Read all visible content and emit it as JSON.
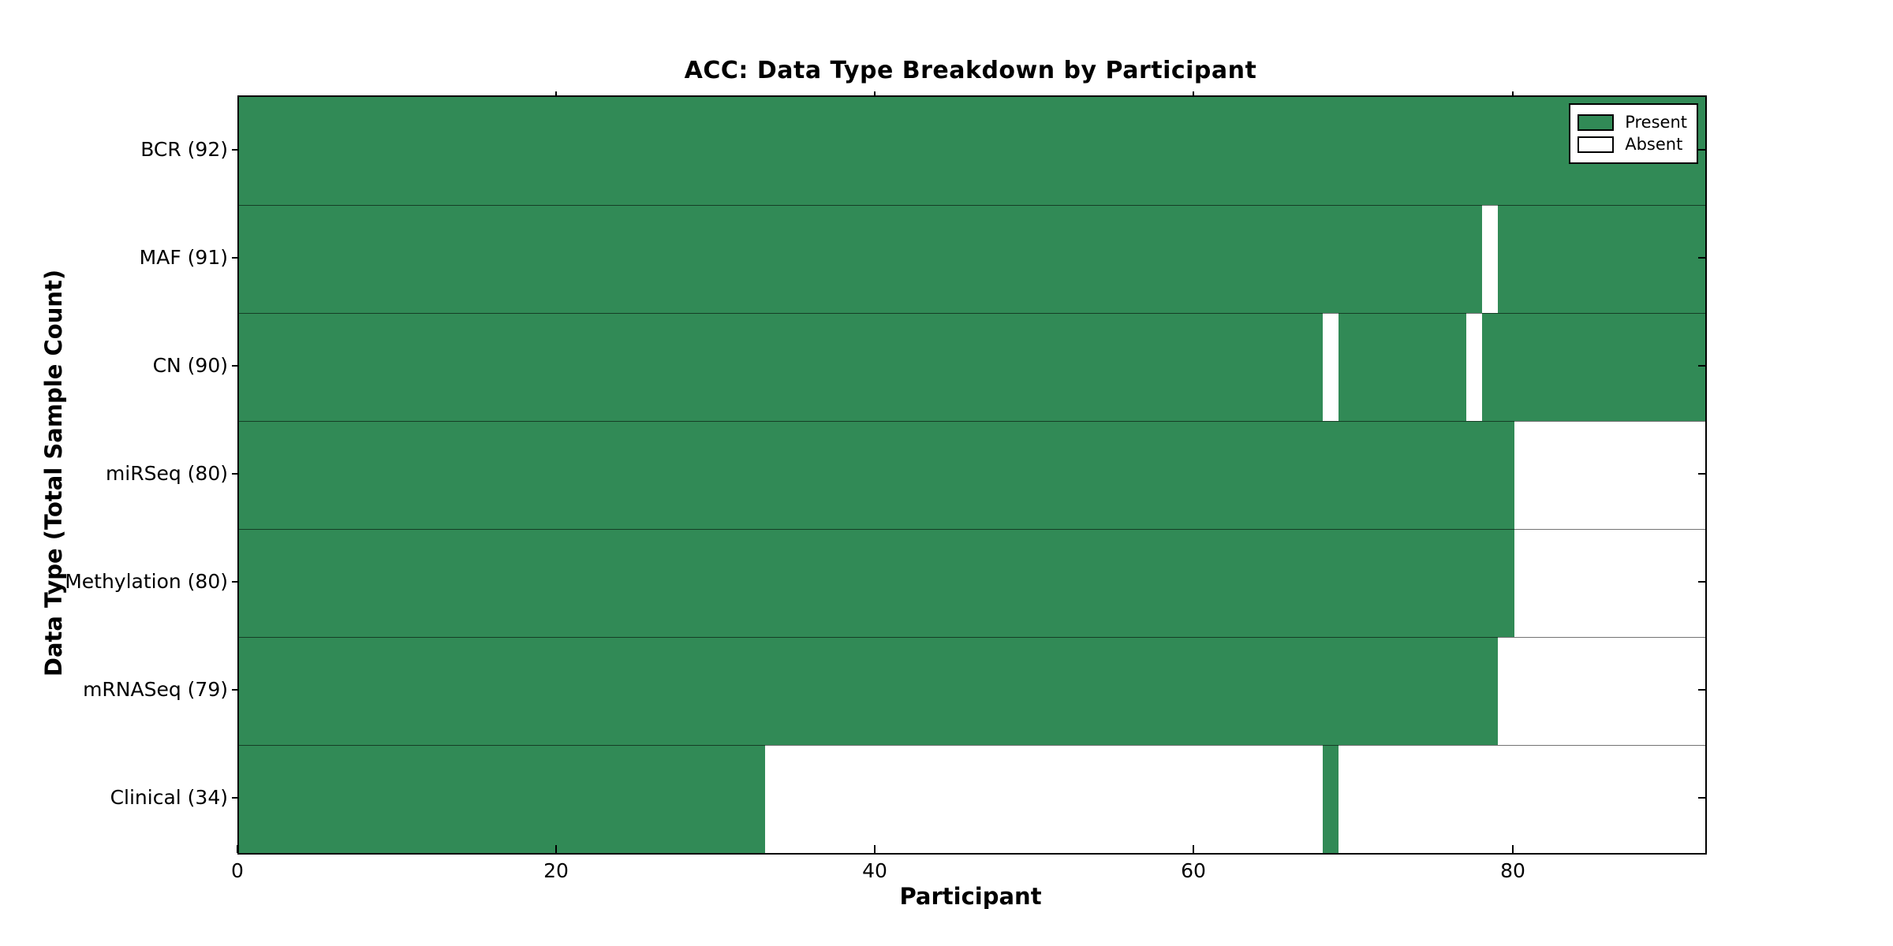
{
  "chart_data": {
    "type": "heatmap",
    "title": "ACC: Data Type Breakdown by Participant",
    "xlabel": "Participant",
    "ylabel": "Data Type (Total Sample Count)",
    "n_participants": 92,
    "xlim": [
      0,
      92
    ],
    "x_ticks": [
      0,
      20,
      40,
      60,
      80
    ],
    "grid": true,
    "legend_position": "upper right",
    "legend": [
      {
        "label": "Present",
        "key": "present"
      },
      {
        "label": "Absent",
        "key": "absent"
      }
    ],
    "colors": {
      "present": "#318a56",
      "absent": "#ffffff",
      "grid_line": "rgba(0,0,0,0.42)",
      "row_separator": "rgba(0,0,0,0.55)",
      "axis": "#000000"
    },
    "rows": [
      {
        "label": "BCR (92)",
        "name": "BCR",
        "total": 92,
        "absent": []
      },
      {
        "label": "MAF (91)",
        "name": "MAF",
        "total": 91,
        "absent": [
          78
        ]
      },
      {
        "label": "CN (90)",
        "name": "CN",
        "total": 90,
        "absent": [
          68,
          77
        ]
      },
      {
        "label": "miRSeq (80)",
        "name": "miRSeq",
        "total": 80,
        "absent": [
          80,
          81,
          82,
          83,
          84,
          85,
          86,
          87,
          88,
          89,
          90,
          91
        ]
      },
      {
        "label": "Methylation (80)",
        "name": "Methylation",
        "total": 80,
        "absent": [
          80,
          81,
          82,
          83,
          84,
          85,
          86,
          87,
          88,
          89,
          90,
          91
        ]
      },
      {
        "label": "mRNASeq (79)",
        "name": "mRNASeq",
        "total": 79,
        "absent": [
          79,
          80,
          81,
          82,
          83,
          84,
          85,
          86,
          87,
          88,
          89,
          90,
          91
        ]
      },
      {
        "label": "Clinical (34)",
        "name": "Clinical",
        "total": 34,
        "absent": [
          33,
          34,
          35,
          36,
          37,
          38,
          39,
          40,
          41,
          42,
          43,
          44,
          45,
          46,
          47,
          48,
          49,
          50,
          51,
          52,
          53,
          54,
          55,
          56,
          57,
          58,
          59,
          60,
          61,
          62,
          63,
          64,
          65,
          66,
          67,
          69,
          70,
          71,
          72,
          73,
          74,
          75,
          76,
          77,
          78,
          79,
          80,
          81,
          82,
          83,
          84,
          85,
          86,
          87,
          88,
          89,
          90,
          91
        ]
      }
    ]
  }
}
